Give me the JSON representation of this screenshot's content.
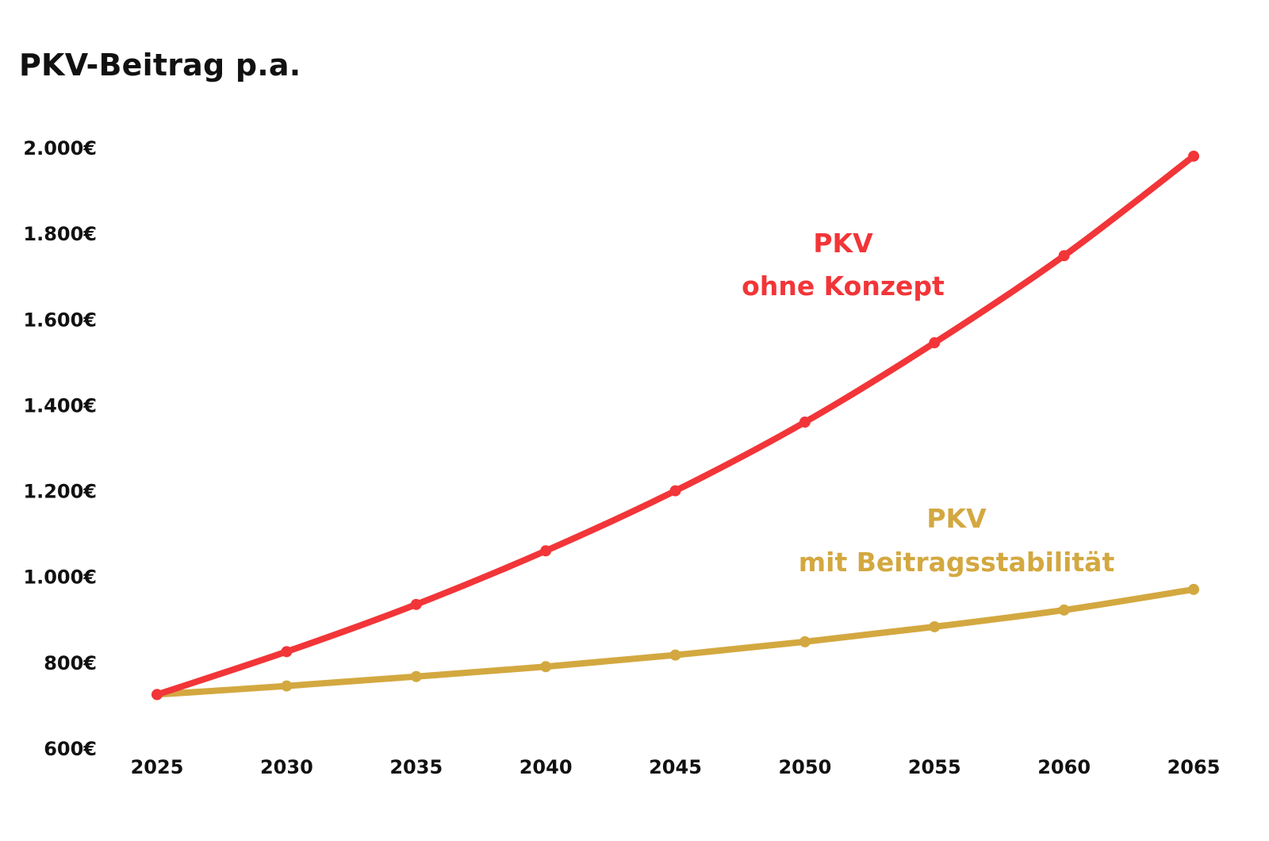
{
  "chart_data": {
    "type": "line",
    "title": "PKV-Beitrag p.a.",
    "xlabel": "",
    "ylabel": "",
    "x": [
      2025,
      2030,
      2035,
      2040,
      2045,
      2050,
      2055,
      2060,
      2065
    ],
    "x_tick_labels": [
      "2025",
      "2030",
      "2035",
      "2040",
      "2045",
      "2050",
      "2055",
      "2060",
      "2065"
    ],
    "ylim": [
      600,
      2000
    ],
    "y_ticks": [
      600,
      800,
      1000,
      1200,
      1400,
      1600,
      1800,
      2000
    ],
    "y_tick_labels": [
      "600€",
      "800€",
      "1.000€",
      "1.200€",
      "1.400€",
      "1.600€",
      "1.800€",
      "2.000€"
    ],
    "grid": false,
    "legend": "none",
    "series": [
      {
        "key": "ohne",
        "label_lines": [
          "PKV",
          "ohne Konzept"
        ],
        "color": "#f23538",
        "values": [
          725,
          825,
          935,
          1060,
          1200,
          1360,
          1545,
          1748,
          1980
        ]
      },
      {
        "key": "mit",
        "label_lines": [
          "PKV",
          "mit Beitragsstabilität"
        ],
        "color": "#d3a840",
        "values": [
          725,
          745,
          767,
          790,
          817,
          848,
          883,
          922,
          970
        ]
      }
    ]
  }
}
